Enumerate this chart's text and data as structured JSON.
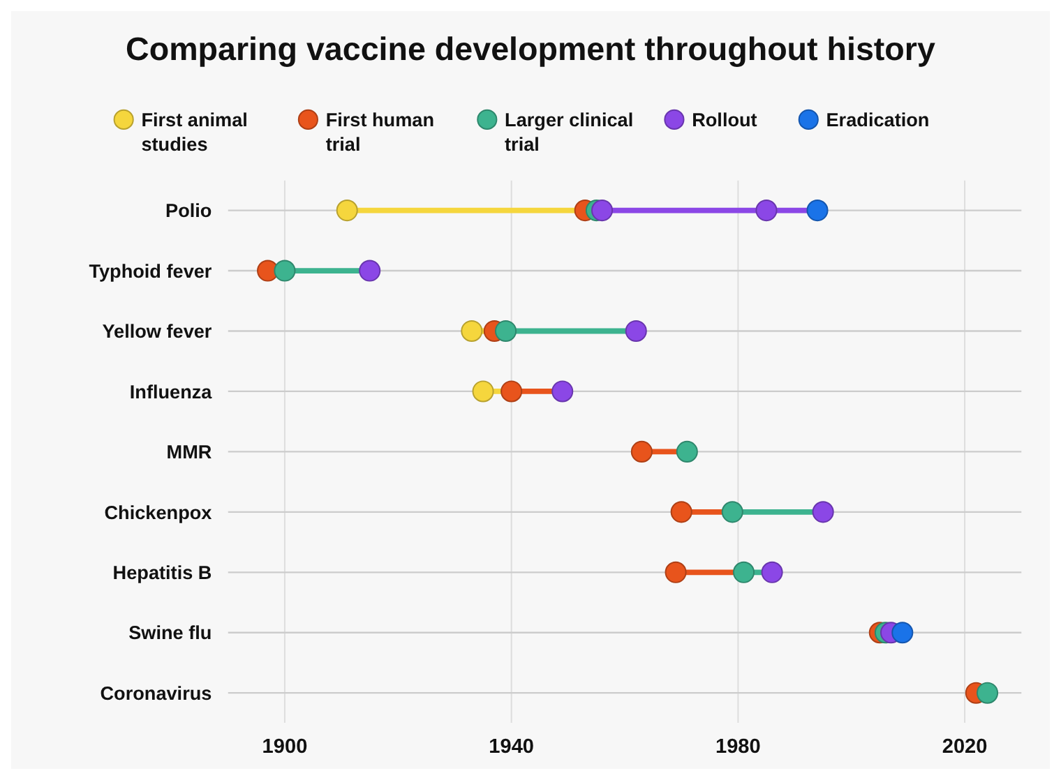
{
  "chart_data": {
    "type": "scatter",
    "orientation": "horizontal",
    "title": "Comparing vaccine development throughout history",
    "categories": [
      "Polio",
      "Typhoid fever",
      "Yellow fever",
      "Influenza",
      "MMR",
      "Chickenpox",
      "Hepatitis B",
      "Swine flu",
      "Coronavirus"
    ],
    "series": [
      {
        "name": "First animal studies",
        "color": "#f5d63d",
        "values": [
          1911,
          null,
          1933,
          1935,
          null,
          null,
          null,
          null,
          null
        ]
      },
      {
        "name": "First human trial",
        "color": "#e8541c",
        "values": [
          1953,
          1897,
          1937,
          1940,
          1963,
          1970,
          1969,
          2005,
          2022
        ]
      },
      {
        "name": "Larger clinical trial",
        "color": "#3db38f",
        "values": [
          1955,
          1900,
          1939,
          null,
          1971,
          1979,
          1981,
          2006,
          2024
        ]
      },
      {
        "name": "Rollout",
        "color": "#8b47e6",
        "values": [
          1956,
          1915,
          1962,
          1949,
          null,
          1995,
          1986,
          2007,
          null
        ]
      },
      {
        "color": "#8b47e6",
        "values": [
          1985,
          null,
          null,
          null,
          null,
          null,
          null,
          null,
          null
        ]
      },
      {
        "name": "Eradication",
        "color": "#1a73e8",
        "values": [
          1994,
          null,
          null,
          null,
          null,
          null,
          null,
          2009,
          null
        ]
      }
    ],
    "xlim": [
      1890,
      2030
    ],
    "xticks": [
      1900,
      1940,
      1980,
      2020
    ],
    "grid": true,
    "legend": "top",
    "marker": "circle"
  }
}
